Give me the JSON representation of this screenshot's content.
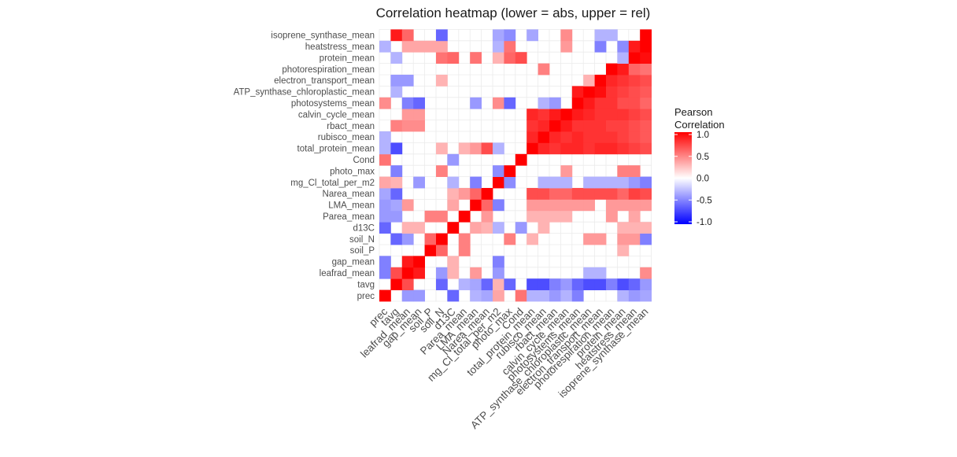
{
  "chart_data": {
    "type": "heatmap",
    "title": "Correlation heatmap (lower = abs, upper = rel)",
    "legend": {
      "title_lines": [
        "Pearson",
        "Correlation"
      ],
      "ticks": [
        1.0,
        0.5,
        0.0,
        -0.5,
        -1.0
      ],
      "tick_labels": [
        "1.0",
        "0.5",
        "0.0",
        "-0.5",
        "-1.0"
      ],
      "range": [
        -1,
        1
      ],
      "colors": {
        "low": "#0000ff",
        "mid": "#ffffff",
        "high": "#ff0000"
      },
      "position": "right"
    },
    "grid": true,
    "variables": [
      "prec",
      "tavg",
      "leafrad_mean",
      "gap_mean",
      "soil_P",
      "soil_N",
      "d13C",
      "Parea_mean",
      "LMA_mean",
      "Narea_mean",
      "mg_Cl_total_per_m2",
      "photo_max",
      "Cond",
      "total_protein_mean",
      "rubisco_mean",
      "rbact_mean",
      "calvin_cycle_mean",
      "photosystems_mean",
      "ATP_synthase_chloroplastic_mean",
      "electron_transport_mean",
      "photorespiration_mean",
      "protein_mean",
      "heatstress_mean",
      "isoprene_synthase_mean"
    ],
    "matrix": [
      [
        1.0,
        0,
        -0.4,
        -0.4,
        0,
        0,
        -0.6,
        0,
        -0.3,
        -0.35,
        0.35,
        0,
        0.55,
        -0.3,
        -0.3,
        -0.4,
        -0.3,
        -0.5,
        0,
        0,
        0,
        -0.3,
        -0.4,
        -0.35
      ],
      [
        0,
        1.0,
        0.7,
        0,
        0,
        -0.6,
        0,
        -0.3,
        -0.35,
        -0.6,
        0.3,
        -0.6,
        0,
        -0.7,
        -0.7,
        -0.5,
        -0.4,
        -0.6,
        -0.7,
        -0.7,
        -0.5,
        -0.7,
        -0.6,
        -0.4
      ],
      [
        -0.5,
        0.7,
        1.0,
        0.9,
        0,
        -0.4,
        0.3,
        0,
        0.4,
        0,
        -0.4,
        0,
        0,
        0,
        0,
        0,
        0,
        0,
        -0.3,
        -0.3,
        0,
        0,
        0,
        0.45
      ],
      [
        -0.5,
        0,
        0.9,
        1.0,
        0,
        0,
        0.3,
        0,
        0,
        0,
        -0.5,
        0,
        0,
        0,
        0,
        0,
        0,
        0,
        0,
        0,
        0,
        0,
        0,
        0
      ],
      [
        0,
        0,
        0,
        0,
        1.0,
        0.6,
        0,
        0.5,
        0,
        0,
        0,
        0,
        0,
        0,
        0,
        0,
        0,
        0,
        0,
        0,
        0,
        0.3,
        0,
        0
      ],
      [
        0,
        -0.6,
        -0.4,
        0,
        0.6,
        1.0,
        0,
        0.5,
        0,
        0,
        0,
        0.5,
        0,
        0.3,
        0,
        0,
        0,
        0,
        0.4,
        0.4,
        0,
        0.4,
        0.4,
        -0.5
      ],
      [
        -0.6,
        0,
        0.3,
        0.3,
        0,
        0,
        1.0,
        0,
        0.35,
        0.3,
        -0.3,
        0,
        -0.4,
        0,
        0.3,
        0,
        0,
        0,
        0,
        0,
        0,
        0.3,
        0.3,
        0.3
      ],
      [
        -0.4,
        -0.4,
        0,
        0,
        0.5,
        0.5,
        0,
        1.0,
        0,
        0.4,
        0,
        0,
        0,
        0.3,
        0.3,
        0.3,
        0.3,
        0,
        0,
        0,
        0.4,
        0,
        0.35,
        0
      ],
      [
        -0.4,
        -0.35,
        0.4,
        0,
        0,
        0,
        0.35,
        0,
        1.0,
        0.6,
        -0.5,
        0,
        0,
        0.4,
        0.4,
        0.4,
        0.4,
        0.4,
        0.4,
        0,
        0.4,
        0.4,
        0.4,
        0.4
      ],
      [
        -0.35,
        -0.6,
        0,
        0,
        0,
        0,
        0.3,
        0.4,
        0.6,
        1.0,
        0,
        0,
        0,
        0.7,
        0.7,
        0.6,
        0.6,
        0.7,
        0.7,
        0.7,
        0.7,
        0.6,
        0.75,
        0.7
      ],
      [
        0.35,
        0.3,
        0,
        -0.4,
        0,
        0,
        -0.3,
        0,
        -0.5,
        0,
        1.0,
        -0.45,
        0,
        0,
        -0.3,
        -0.3,
        -0.3,
        0,
        -0.3,
        -0.3,
        -0.3,
        -0.3,
        -0.4,
        -0.5
      ],
      [
        0,
        -0.5,
        0,
        0,
        0,
        0.5,
        0,
        0,
        0,
        0,
        -0.45,
        1.0,
        0,
        0,
        0,
        0,
        0.4,
        0,
        0,
        0,
        0,
        0.5,
        0.5,
        0
      ],
      [
        0.55,
        0,
        0,
        0,
        0,
        0,
        -0.4,
        0,
        0,
        0,
        0,
        0,
        1.0,
        0,
        0,
        0,
        0,
        0,
        0,
        0,
        0,
        0,
        0,
        0
      ],
      [
        -0.3,
        -0.7,
        0,
        0,
        0,
        0.3,
        0,
        0.3,
        0.4,
        0.7,
        -0.3,
        0,
        0,
        1.0,
        0.85,
        0.8,
        0.85,
        0.85,
        0.8,
        0.85,
        0.85,
        0.8,
        0.75,
        0.7
      ],
      [
        -0.3,
        0,
        0,
        0,
        0,
        0,
        0,
        0,
        0,
        0,
        0,
        0,
        0,
        0.85,
        1.0,
        0.85,
        0.8,
        0.85,
        0.8,
        0.8,
        0.8,
        0.75,
        0.7,
        0.65
      ],
      [
        0,
        0.5,
        0.45,
        0.45,
        0,
        0,
        0,
        0,
        0,
        0,
        0,
        0,
        0,
        0.8,
        0.85,
        1.0,
        0.9,
        0.8,
        0.8,
        0.8,
        0.75,
        0.75,
        0.7,
        0.65
      ],
      [
        0,
        0,
        0.4,
        0.4,
        0,
        0,
        0,
        0,
        0,
        0,
        0,
        0,
        0,
        0.85,
        0.8,
        0.9,
        1.0,
        0.9,
        0.85,
        0.8,
        0.8,
        0.8,
        0.75,
        0.7
      ],
      [
        0.45,
        0,
        -0.5,
        -0.6,
        0,
        0,
        0,
        0,
        -0.4,
        0,
        0.45,
        -0.6,
        0,
        0,
        -0.3,
        -0.4,
        0,
        1.0,
        0.9,
        0.8,
        0.8,
        0.7,
        0.7,
        0.6
      ],
      [
        0,
        -0.3,
        0,
        0,
        0,
        0,
        0,
        0,
        0,
        0,
        0,
        0,
        0,
        0,
        0,
        0,
        0,
        0.9,
        1.0,
        0.95,
        0.8,
        0.75,
        0.7,
        0.65
      ],
      [
        0,
        -0.4,
        -0.4,
        0,
        0,
        0.3,
        0,
        0,
        0,
        0,
        0,
        0,
        0,
        0,
        0,
        0,
        0,
        0,
        0.3,
        1.0,
        0.85,
        0.8,
        0.75,
        0.7
      ],
      [
        0,
        0,
        0,
        0,
        0,
        0,
        0,
        0,
        0,
        0,
        0,
        0,
        0,
        0,
        0.5,
        0,
        0,
        0,
        0,
        0,
        1.0,
        0.9,
        0.6,
        0.55
      ],
      [
        0,
        -0.3,
        0,
        0,
        0,
        0.55,
        0.6,
        0,
        0.55,
        0,
        0.3,
        0.6,
        0.7,
        0,
        0,
        0,
        0,
        0,
        0,
        0,
        0,
        -0.3,
        1.0,
        0.95
      ],
      [
        -0.3,
        0,
        0.35,
        0.35,
        0.35,
        0.35,
        0,
        0,
        0,
        0,
        -0.3,
        0.55,
        0,
        0,
        0,
        0,
        0.4,
        0,
        0,
        -0.5,
        0,
        -0.45,
        0.9,
        1.0
      ],
      [
        0,
        0.9,
        0.6,
        0,
        0,
        -0.6,
        0,
        0,
        0,
        0,
        -0.35,
        -0.45,
        0,
        -0.35,
        0,
        0,
        0.45,
        0,
        0,
        -0.3,
        -0.3,
        0,
        0,
        1.0
      ]
    ]
  }
}
